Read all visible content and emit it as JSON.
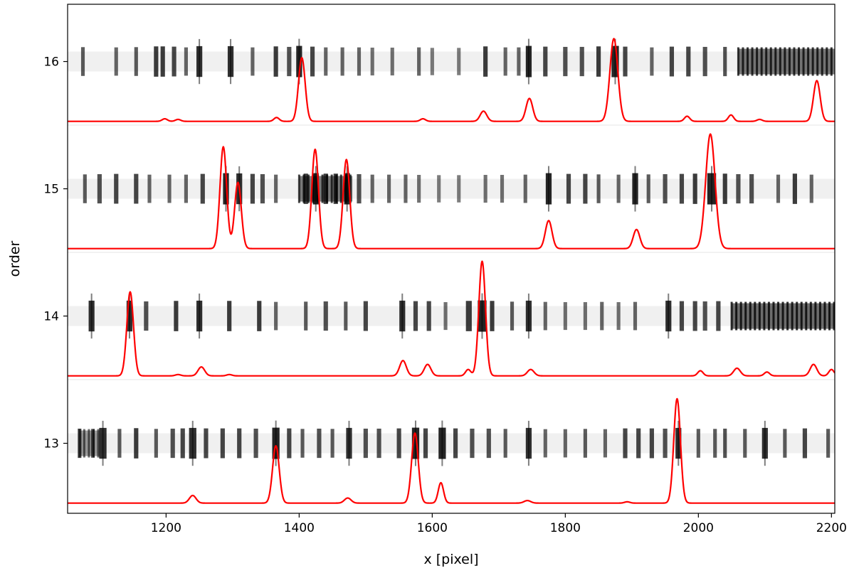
{
  "chart_data": {
    "type": "line",
    "title": "",
    "xlabel": "x [pixel]",
    "ylabel": "order",
    "xlim": [
      1052,
      2205
    ],
    "ylim": [
      12.45,
      16.45
    ],
    "x_ticks": [
      1200,
      1400,
      1600,
      1800,
      2000,
      2200
    ],
    "y_ticks": [
      13,
      14,
      15,
      16
    ],
    "grid": false,
    "legend": "none",
    "colors": {
      "line": "#ff0000",
      "band": "#000000",
      "frame": "#000000"
    },
    "bands": [
      {
        "order": 16,
        "features": [
          [
            1075,
            2.5,
            0.75
          ],
          [
            1125,
            2.5,
            0.7
          ],
          [
            1155,
            2.5,
            0.75
          ],
          [
            1185,
            3,
            0.9
          ],
          [
            1195,
            3,
            0.9
          ],
          [
            1212,
            3,
            0.85
          ],
          [
            1230,
            2.5,
            0.7
          ],
          [
            1250,
            4,
            0.95
          ],
          [
            1297,
            4,
            0.95
          ],
          [
            1330,
            2.5,
            0.7
          ],
          [
            1365,
            3,
            0.9
          ],
          [
            1385,
            3,
            0.8
          ],
          [
            1400,
            4,
            1.0
          ],
          [
            1420,
            3,
            0.85
          ],
          [
            1440,
            2.5,
            0.7
          ],
          [
            1465,
            2.5,
            0.7
          ],
          [
            1490,
            2.5,
            0.7
          ],
          [
            1510,
            2.5,
            0.65
          ],
          [
            1540,
            2.5,
            0.65
          ],
          [
            1580,
            2.5,
            0.7
          ],
          [
            1600,
            2.5,
            0.6
          ],
          [
            1640,
            2.5,
            0.6
          ],
          [
            1680,
            3,
            0.9
          ],
          [
            1710,
            2.5,
            0.7
          ],
          [
            1730,
            2.5,
            0.7
          ],
          [
            1745,
            4,
            1.0
          ],
          [
            1770,
            3,
            0.85
          ],
          [
            1800,
            3,
            0.8
          ],
          [
            1825,
            3,
            0.8
          ],
          [
            1850,
            3,
            0.9
          ],
          [
            1875,
            5,
            1.0
          ],
          [
            1890,
            3,
            0.85
          ],
          [
            1930,
            2.5,
            0.7
          ],
          [
            1960,
            3,
            0.85
          ],
          [
            1985,
            3,
            0.85
          ],
          [
            2010,
            3,
            0.8
          ],
          [
            2040,
            2.5,
            0.8
          ]
        ],
        "dense": [
          2060,
          2205,
          0.95
        ]
      },
      {
        "order": 15,
        "features": [
          [
            1078,
            2.5,
            0.75
          ],
          [
            1100,
            3,
            0.8
          ],
          [
            1125,
            3,
            0.85
          ],
          [
            1155,
            3,
            0.85
          ],
          [
            1175,
            2.5,
            0.7
          ],
          [
            1205,
            2.5,
            0.7
          ],
          [
            1230,
            2.5,
            0.7
          ],
          [
            1255,
            3,
            0.85
          ],
          [
            1290,
            4,
            1.0
          ],
          [
            1310,
            4,
            0.95
          ],
          [
            1330,
            3,
            0.85
          ],
          [
            1345,
            3,
            0.8
          ],
          [
            1365,
            2.5,
            0.7
          ],
          [
            1410,
            3,
            0.9
          ],
          [
            1425,
            4,
            1.0
          ],
          [
            1440,
            3,
            0.9
          ],
          [
            1455,
            3,
            0.9
          ],
          [
            1472,
            4,
            1.0
          ],
          [
            1490,
            3,
            0.8
          ],
          [
            1510,
            2.5,
            0.7
          ],
          [
            1535,
            2.5,
            0.7
          ],
          [
            1560,
            2.5,
            0.7
          ],
          [
            1580,
            2.5,
            0.65
          ],
          [
            1610,
            2.5,
            0.6
          ],
          [
            1640,
            2.5,
            0.6
          ],
          [
            1680,
            2.5,
            0.65
          ],
          [
            1705,
            2.5,
            0.65
          ],
          [
            1740,
            2.5,
            0.7
          ],
          [
            1775,
            4,
            1.0
          ],
          [
            1805,
            3,
            0.85
          ],
          [
            1830,
            3,
            0.85
          ],
          [
            1850,
            2.5,
            0.75
          ],
          [
            1880,
            2.5,
            0.7
          ],
          [
            1905,
            4,
            1.0
          ],
          [
            1925,
            2.5,
            0.75
          ],
          [
            1950,
            3,
            0.8
          ],
          [
            1975,
            3,
            0.85
          ],
          [
            1995,
            3,
            0.9
          ],
          [
            2020,
            6,
            1.0
          ],
          [
            2040,
            3,
            0.9
          ],
          [
            2060,
            3,
            0.8
          ],
          [
            2080,
            3,
            0.8
          ],
          [
            2120,
            2.5,
            0.7
          ],
          [
            2145,
            3,
            0.9
          ],
          [
            2170,
            2.5,
            0.7
          ]
        ],
        "dense": [
          1400,
          1480,
          0.9
        ]
      },
      {
        "order": 14,
        "features": [
          [
            1088,
            4,
            0.95
          ],
          [
            1145,
            4,
            0.95
          ],
          [
            1170,
            3,
            0.8
          ],
          [
            1215,
            3,
            0.9
          ],
          [
            1250,
            4,
            0.95
          ],
          [
            1295,
            3,
            0.9
          ],
          [
            1340,
            3,
            0.9
          ],
          [
            1365,
            2.5,
            0.7
          ],
          [
            1410,
            2.5,
            0.75
          ],
          [
            1440,
            3,
            0.8
          ],
          [
            1470,
            2.5,
            0.75
          ],
          [
            1500,
            3,
            0.85
          ],
          [
            1555,
            4,
            0.95
          ],
          [
            1575,
            3,
            0.85
          ],
          [
            1595,
            3,
            0.85
          ],
          [
            1620,
            2.5,
            0.65
          ],
          [
            1655,
            4,
            0.9
          ],
          [
            1675,
            6,
            1.0
          ],
          [
            1690,
            3,
            0.9
          ],
          [
            1720,
            2.5,
            0.75
          ],
          [
            1745,
            4,
            0.95
          ],
          [
            1770,
            2.5,
            0.7
          ],
          [
            1800,
            2.5,
            0.65
          ],
          [
            1830,
            2.5,
            0.65
          ],
          [
            1855,
            2.5,
            0.7
          ],
          [
            1880,
            2.5,
            0.65
          ],
          [
            1905,
            2.5,
            0.7
          ],
          [
            1955,
            4,
            0.95
          ],
          [
            1975,
            3,
            0.85
          ],
          [
            1995,
            3,
            0.85
          ],
          [
            2010,
            3,
            0.8
          ],
          [
            2030,
            3,
            0.85
          ]
        ],
        "dense": [
          2050,
          2205,
          1.0
        ]
      },
      {
        "order": 13,
        "features": [
          [
            1070,
            2.5,
            0.8
          ],
          [
            1090,
            2.5,
            0.75
          ],
          [
            1105,
            5,
            0.95
          ],
          [
            1130,
            2.5,
            0.75
          ],
          [
            1155,
            3,
            0.9
          ],
          [
            1185,
            2.5,
            0.75
          ],
          [
            1210,
            3,
            0.8
          ],
          [
            1225,
            3,
            0.85
          ],
          [
            1240,
            5,
            0.95
          ],
          [
            1260,
            3,
            0.85
          ],
          [
            1285,
            3,
            0.85
          ],
          [
            1310,
            3,
            0.85
          ],
          [
            1335,
            3,
            0.8
          ],
          [
            1365,
            5,
            1.0
          ],
          [
            1385,
            3,
            0.85
          ],
          [
            1405,
            2.5,
            0.75
          ],
          [
            1430,
            3,
            0.8
          ],
          [
            1450,
            2.5,
            0.75
          ],
          [
            1475,
            4,
            0.95
          ],
          [
            1500,
            3,
            0.8
          ],
          [
            1520,
            3,
            0.8
          ],
          [
            1550,
            3,
            0.85
          ],
          [
            1575,
            5,
            1.0
          ],
          [
            1590,
            3,
            0.85
          ],
          [
            1615,
            5,
            1.0
          ],
          [
            1635,
            3,
            0.85
          ],
          [
            1660,
            3,
            0.8
          ],
          [
            1685,
            3,
            0.8
          ],
          [
            1710,
            2.5,
            0.75
          ],
          [
            1745,
            4,
            0.95
          ],
          [
            1770,
            2.5,
            0.7
          ],
          [
            1800,
            2.5,
            0.7
          ],
          [
            1830,
            2.5,
            0.75
          ],
          [
            1860,
            2.5,
            0.7
          ],
          [
            1890,
            3,
            0.85
          ],
          [
            1910,
            3,
            0.85
          ],
          [
            1930,
            3,
            0.85
          ],
          [
            1950,
            3,
            0.8
          ],
          [
            1970,
            4,
            0.95
          ],
          [
            2000,
            2.5,
            0.75
          ],
          [
            2025,
            2.5,
            0.75
          ],
          [
            2040,
            2.5,
            0.8
          ],
          [
            2070,
            2.5,
            0.75
          ],
          [
            2100,
            4,
            0.95
          ],
          [
            2130,
            2.5,
            0.75
          ],
          [
            2160,
            3,
            0.85
          ],
          [
            2195,
            2.5,
            0.75
          ]
        ],
        "dense": [
          1070,
          1100,
          0.7
        ]
      }
    ],
    "series": [
      {
        "order": 16,
        "baseline": 15.53,
        "peaks": [
          [
            1198,
            0.02,
            4
          ],
          [
            1218,
            0.015,
            4
          ],
          [
            1366,
            0.03,
            4
          ],
          [
            1404,
            0.5,
            5
          ],
          [
            1586,
            0.02,
            4
          ],
          [
            1677,
            0.08,
            5
          ],
          [
            1746,
            0.18,
            5
          ],
          [
            1873,
            0.65,
            6
          ],
          [
            1983,
            0.04,
            4
          ],
          [
            2049,
            0.05,
            4
          ],
          [
            2092,
            0.015,
            4
          ],
          [
            2178,
            0.32,
            5
          ]
        ]
      },
      {
        "order": 15,
        "baseline": 14.53,
        "peaks": [
          [
            1286,
            0.8,
            5
          ],
          [
            1308,
            0.52,
            5
          ],
          [
            1424,
            0.78,
            5
          ],
          [
            1471,
            0.7,
            5
          ],
          [
            1775,
            0.22,
            5
          ],
          [
            1907,
            0.15,
            5
          ],
          [
            2018,
            0.9,
            7
          ]
        ]
      },
      {
        "order": 14,
        "baseline": 13.53,
        "peaks": [
          [
            1146,
            0.66,
            5
          ],
          [
            1218,
            0.01,
            4
          ],
          [
            1253,
            0.07,
            5
          ],
          [
            1295,
            0.01,
            4
          ],
          [
            1556,
            0.12,
            5
          ],
          [
            1593,
            0.09,
            5
          ],
          [
            1654,
            0.05,
            4
          ],
          [
            1675,
            0.9,
            5
          ],
          [
            1748,
            0.05,
            5
          ],
          [
            2003,
            0.04,
            4
          ],
          [
            2058,
            0.06,
            5
          ],
          [
            2103,
            0.03,
            4
          ],
          [
            2173,
            0.09,
            5
          ],
          [
            2200,
            0.05,
            4
          ]
        ]
      },
      {
        "order": 13,
        "baseline": 12.53,
        "peaks": [
          [
            1240,
            0.06,
            5
          ],
          [
            1365,
            0.45,
            5
          ],
          [
            1473,
            0.04,
            5
          ],
          [
            1574,
            0.55,
            5
          ],
          [
            1613,
            0.16,
            4
          ],
          [
            1743,
            0.02,
            5
          ],
          [
            1893,
            0.01,
            4
          ],
          [
            1968,
            0.82,
            5
          ]
        ]
      }
    ]
  }
}
